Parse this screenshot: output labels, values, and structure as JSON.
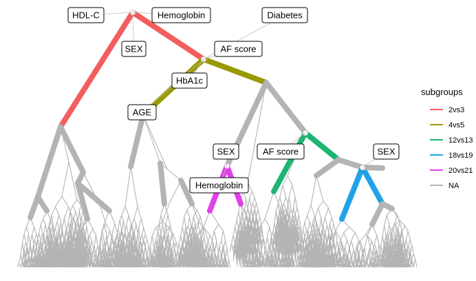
{
  "colors": {
    "2vs3": "#F25E5E",
    "4vs5": "#999900",
    "12vs13": "#1DB570",
    "18vs19": "#1FA2E8",
    "20vs21": "#E040E8",
    "NA": "#B4B4B4",
    "background": "#FFFFFF"
  },
  "node_labels": [
    {
      "id": "hdl",
      "text": "HDL-C"
    },
    {
      "id": "hemo-top",
      "text": "Hemoglobin"
    },
    {
      "id": "sex-top",
      "text": "SEX"
    },
    {
      "id": "diabetes",
      "text": "Diabetes"
    },
    {
      "id": "af-top",
      "text": "AF score"
    },
    {
      "id": "hba1c",
      "text": "HbA1c"
    },
    {
      "id": "age",
      "text": "AGE"
    },
    {
      "id": "sex-mid",
      "text": "SEX"
    },
    {
      "id": "af-mid",
      "text": "AF score"
    },
    {
      "id": "sex-right",
      "text": "SEX"
    },
    {
      "id": "hemo-mid",
      "text": "Hemoglobin"
    }
  ],
  "legend": {
    "title": "subgroups",
    "items": [
      {
        "label": "2vs3",
        "color": "#F25E5E"
      },
      {
        "label": "4vs5",
        "color": "#999900"
      },
      {
        "label": "12vs13",
        "color": "#1DB570"
      },
      {
        "label": "18vs19",
        "color": "#1FA2E8"
      },
      {
        "label": "20vs21",
        "color": "#E040E8"
      },
      {
        "label": "NA",
        "color": "#B4B4B4"
      }
    ]
  }
}
